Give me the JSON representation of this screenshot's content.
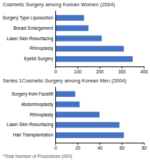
{
  "chart_data": [
    {
      "type": "bar",
      "orientation": "horizontal",
      "title": "Cosmetic Surgery among Korean Women (2004)",
      "categories": [
        "Surgery Type Liposuction",
        "Breast Enlargement",
        "Laser Skin Resurfacing",
        "Rhinoplasty",
        "Eyelid Surgery"
      ],
      "values": [
        130,
        150,
        210,
        310,
        350
      ],
      "color": "#4472C4",
      "xlim": [
        0,
        400
      ],
      "xticks": [
        0,
        100,
        200,
        300,
        400
      ],
      "grid": false
    },
    {
      "type": "bar",
      "orientation": "horizontal",
      "title": "Series 1Cosmetic Surgery among Korean Men (2004)",
      "categories": [
        "Surgery from Facelift",
        "Abdominoplasty",
        "Rhinoplasty",
        "Laser Skin Resurfacing",
        "Hair Transplantation"
      ],
      "values": [
        18,
        22,
        40,
        58,
        62
      ],
      "color": "#4472C4",
      "xlim": [
        0,
        80
      ],
      "xticks": [
        0,
        20,
        40,
        60,
        80
      ],
      "grid": false,
      "annotations": [
        "*Total Number of Procedures (000)"
      ]
    }
  ]
}
